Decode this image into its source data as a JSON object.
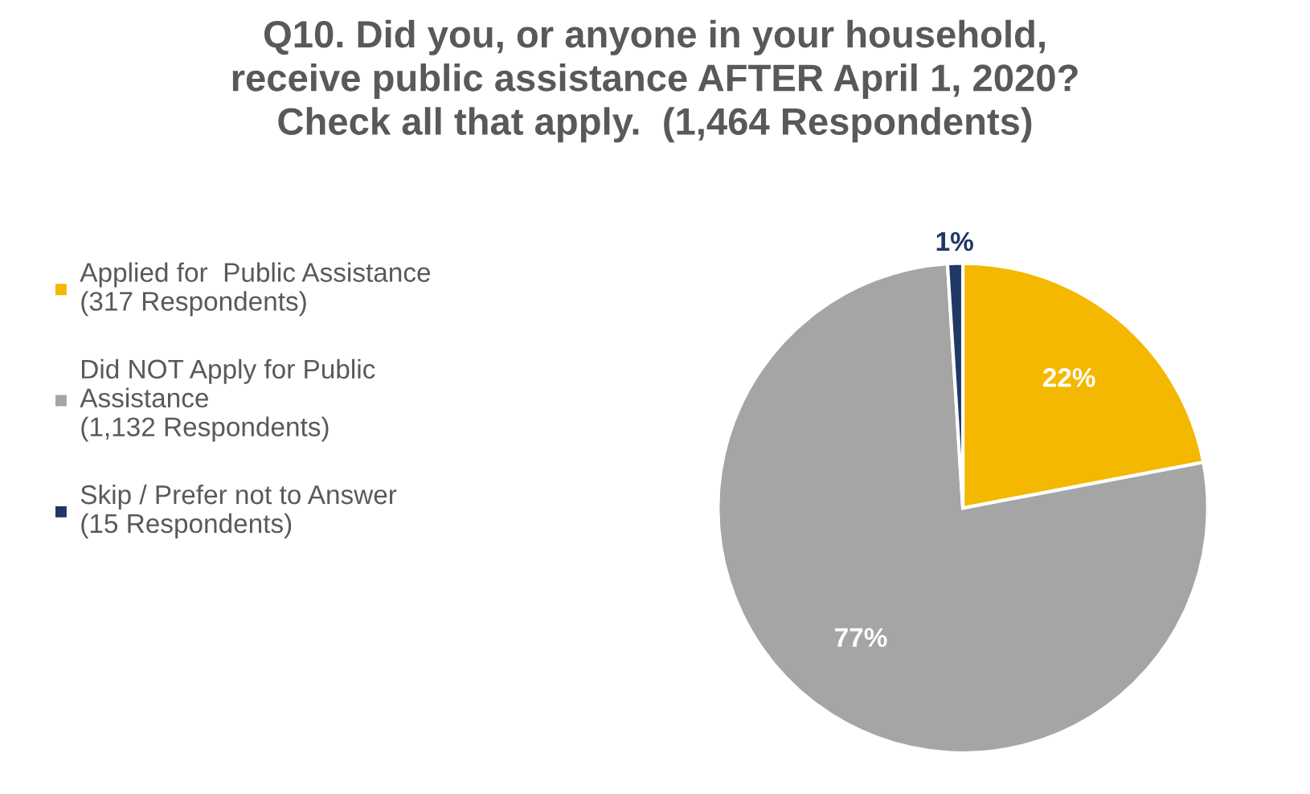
{
  "chart_data": {
    "type": "pie",
    "title": "Q10. Did you, or anyone in your household,\nreceive public assistance AFTER April 1, 2020?\nCheck all that apply.  (1,464 Respondents)",
    "categories": [
      "Applied for  Public Assistance\n(317 Respondents)",
      "Did NOT Apply for Public\nAssistance\n(1,132 Respondents)",
      "Skip / Prefer not to Answer\n(15 Respondents)"
    ],
    "values": [
      22,
      77,
      1
    ],
    "value_labels": [
      "22%",
      "77%",
      "1%"
    ],
    "colors": [
      "#f5b800",
      "#a5a5a5",
      "#1f3864"
    ],
    "legend": "left"
  }
}
